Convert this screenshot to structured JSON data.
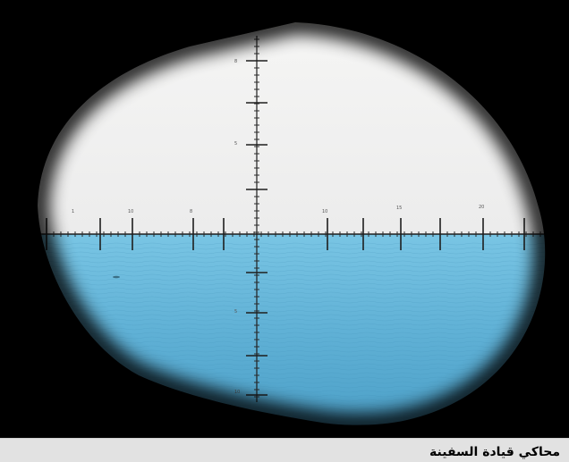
{
  "caption": "محاكي قيادة السفينة",
  "colors": {
    "sky": "#f4f4f3",
    "sea": "#5fb0d5",
    "sea_deep": "#4a9ec6",
    "vignette": "#000000",
    "caption_bg": "#e2e2e2"
  }
}
